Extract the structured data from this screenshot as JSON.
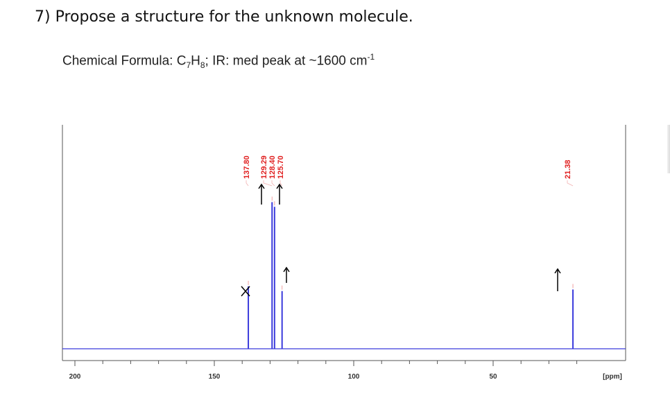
{
  "question": {
    "number": "7)",
    "prompt": "Propose a structure for the unknown molecule."
  },
  "formula_line": {
    "prefix": "Chemical Formula: C",
    "c_count": "7",
    "h_part": "H",
    "h_count": "8",
    "ir_text": "; IR: med peak at ~1600 cm",
    "ir_exponent": "-1"
  },
  "chart_data": {
    "type": "line",
    "title": "",
    "xlabel": "[ppm]",
    "ylabel": "",
    "xlim": [
      200,
      0
    ],
    "x_ticks": [
      200,
      150,
      100,
      50
    ],
    "x_tick_labels": [
      "200",
      "150",
      "100",
      "50"
    ],
    "x_unit_label": "[ppm]",
    "grid": false,
    "series": [
      {
        "peaks": [
          {
            "ppm": 137.8,
            "label": "137.80",
            "height": 0.4,
            "annotation": "cross"
          },
          {
            "ppm": 129.29,
            "label": "129.29",
            "height": 0.94,
            "annotation": "arrow"
          },
          {
            "ppm": 128.4,
            "label": "128.40",
            "height": 0.91,
            "annotation": "none"
          },
          {
            "ppm": 125.7,
            "label": "125.70",
            "height": 0.37,
            "annotation": "arrow"
          },
          {
            "ppm": 21.38,
            "label": "21.38",
            "height": 0.38,
            "annotation": "arrow"
          }
        ]
      }
    ],
    "colors": {
      "spectrum": "#3b3bdc",
      "peak_labels": "#e02020",
      "axes": "#555555",
      "annotations": "#000000"
    }
  }
}
